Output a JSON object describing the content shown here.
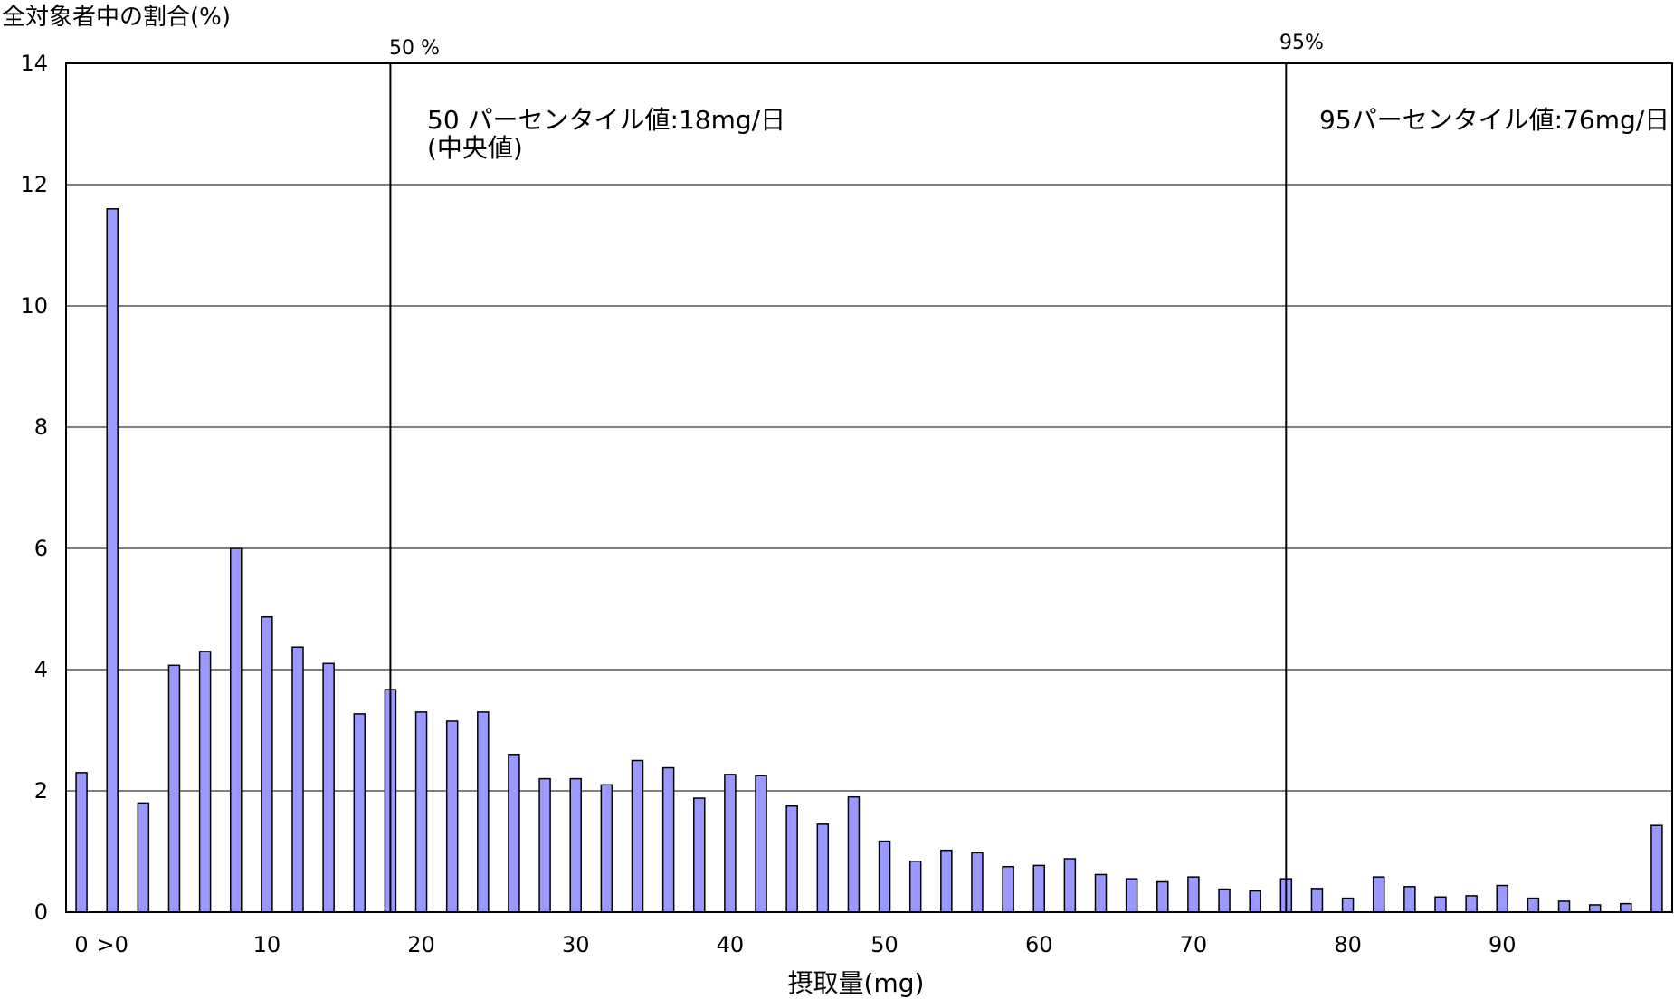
{
  "chart_data": {
    "type": "bar",
    "ylabel": "全対象者中の割合(%)",
    "xlabel": "摂取量(mg)",
    "ylim": [
      0,
      14
    ],
    "yticks": [
      "0",
      "2",
      "4",
      "6",
      "8",
      "10",
      "12",
      "14"
    ],
    "xtick_labels": [
      {
        "label": "0",
        "at": 0
      },
      {
        "label": ">0",
        "at": 1
      },
      {
        "label": "10",
        "at": 6
      },
      {
        "label": "20",
        "at": 11
      },
      {
        "label": "30",
        "at": 16
      },
      {
        "label": "40",
        "at": 21
      },
      {
        "label": "50",
        "at": 26
      },
      {
        "label": "60",
        "at": 31
      },
      {
        "label": "70",
        "at": 36
      },
      {
        "label": "80",
        "at": 41
      },
      {
        "label": "90",
        "at": 46
      }
    ],
    "values": [
      2.3,
      11.6,
      1.8,
      4.07,
      4.3,
      6.0,
      4.87,
      4.37,
      4.1,
      3.27,
      3.67,
      3.3,
      3.15,
      3.3,
      2.6,
      2.2,
      2.2,
      2.1,
      2.5,
      2.38,
      1.88,
      2.27,
      2.25,
      1.75,
      1.45,
      1.9,
      1.17,
      0.84,
      1.02,
      0.98,
      0.75,
      0.77,
      0.88,
      0.62,
      0.55,
      0.5,
      0.58,
      0.38,
      0.35,
      0.55,
      0.39,
      0.23,
      0.58,
      0.42,
      0.25,
      0.27,
      0.44,
      0.23,
      0.18,
      0.12,
      0.14,
      1.43
    ],
    "grid": true,
    "bar_color": "#9999ff",
    "bar_edge_color": "#000000",
    "annotations": {
      "p50": {
        "label": "50 %",
        "text_line1": "50 パーセンタイル値:18mg/日",
        "text_line2": "(中央値)",
        "x_mg": 18
      },
      "p95": {
        "label": "95%",
        "text_line1": "95パーセンタイル値:76mg/日",
        "x_mg": 76
      }
    }
  }
}
